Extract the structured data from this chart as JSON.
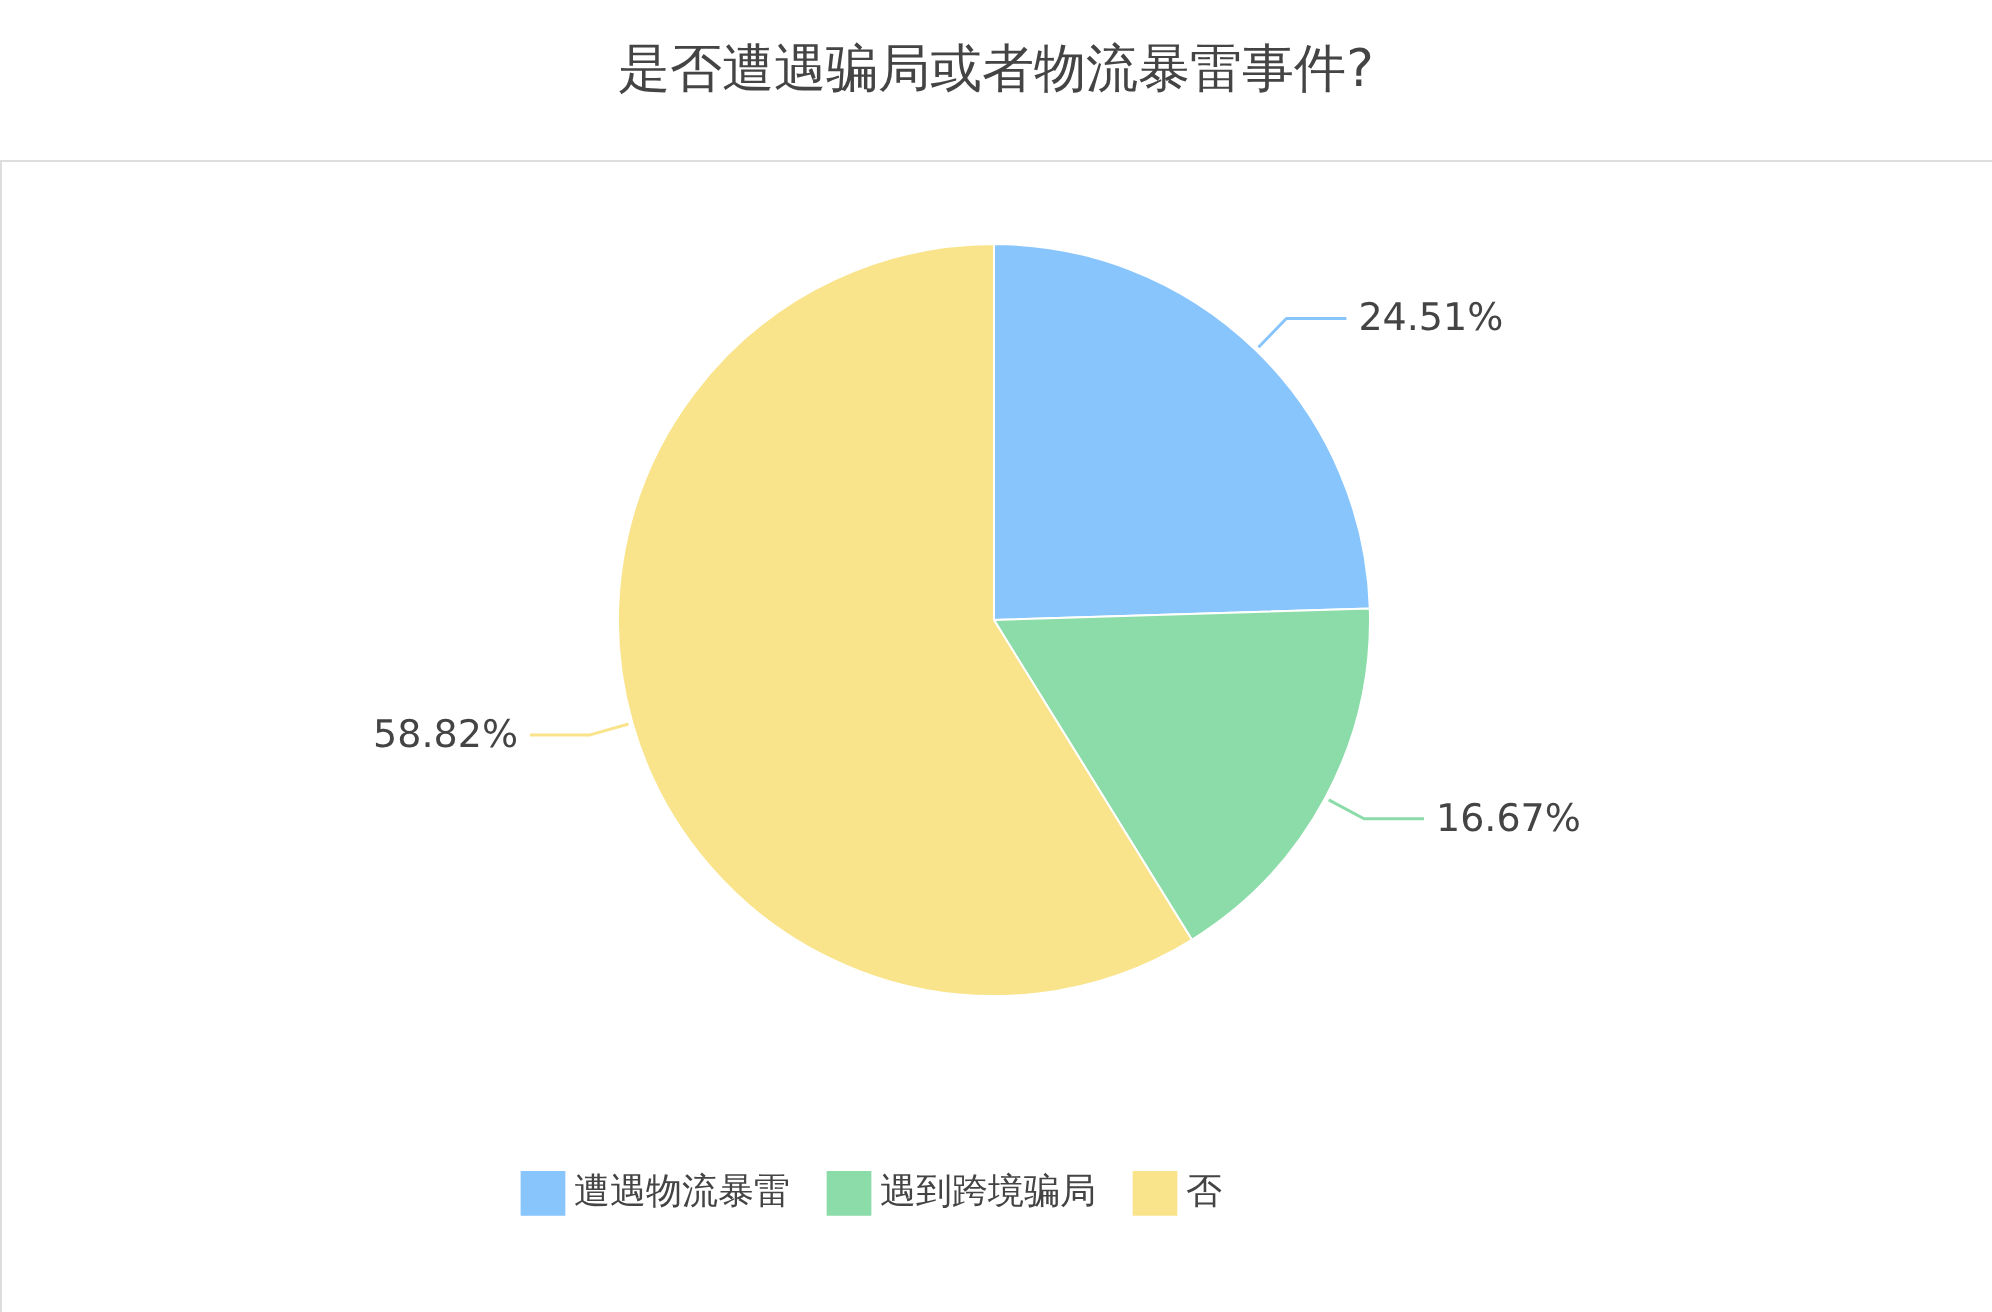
{
  "chart_data": {
    "type": "pie",
    "title": "是否遭遇骗局或者物流暴雷事件?",
    "categories": [
      "遭遇物流暴雷",
      "遇到跨境骗局",
      "否"
    ],
    "values": [
      24.51,
      16.67,
      58.82
    ],
    "colors": [
      "#88c5fc",
      "#8bdca8",
      "#f9e48c"
    ],
    "value_labels": [
      "24.51%",
      "16.67%",
      "58.82%"
    ],
    "legend": "bottom"
  }
}
